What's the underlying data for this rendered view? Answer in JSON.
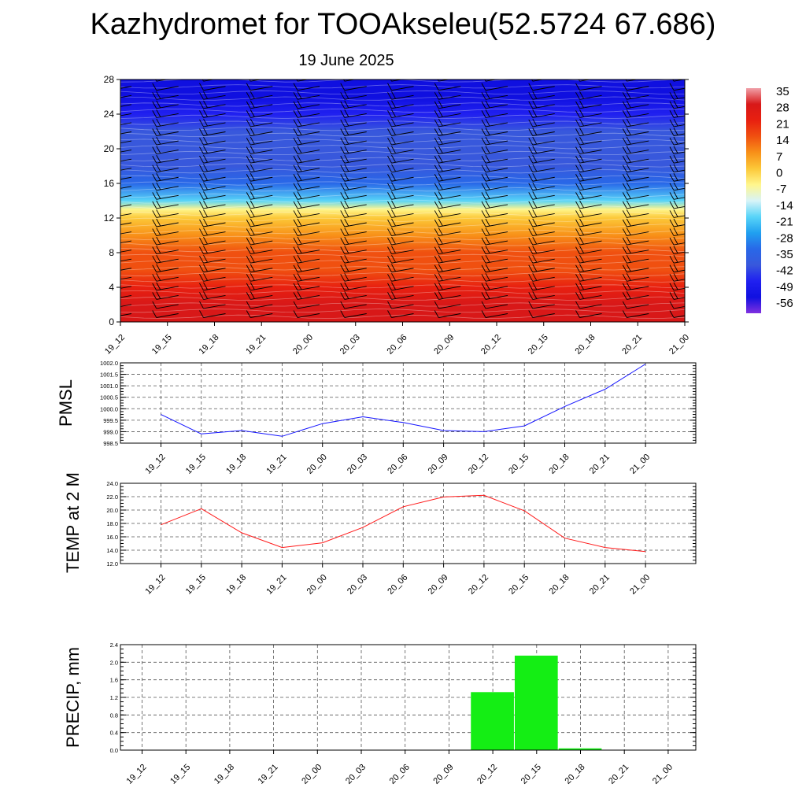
{
  "page": {
    "title": "Kazhydromet for TOOAkseleu(52.5724 67.686)",
    "subtitle": "19 June 2025"
  },
  "colors": {
    "pmsl_line": "#1515ff",
    "temp_line": "#ff1a1a",
    "precip_bar": "#14ee14",
    "axis": "#000000",
    "grid": "#555555"
  },
  "chart_data": [
    {
      "id": "cross-section",
      "type": "heatmap",
      "title": "",
      "xlabel": "",
      "ylabel": "",
      "x": [
        "19_12",
        "19_15",
        "19_18",
        "19_21",
        "20_00",
        "20_03",
        "20_06",
        "20_09",
        "20_12",
        "20_15",
        "20_18",
        "20_21",
        "21_00"
      ],
      "y_ticks": [
        0,
        4,
        8,
        12,
        16,
        20,
        24,
        28
      ],
      "ylim": [
        0,
        28
      ],
      "colorbar": {
        "labels": [
          "35",
          "28",
          "21",
          "14",
          "7",
          "0",
          "-7",
          "-14",
          "-21",
          "-28",
          "-35",
          "-42",
          "-49",
          "-56"
        ],
        "stops": [
          {
            "value": 35,
            "color": "#f0a0a8"
          },
          {
            "value": 28,
            "color": "#d81818"
          },
          {
            "value": 21,
            "color": "#e82010"
          },
          {
            "value": 14,
            "color": "#f05010"
          },
          {
            "value": 7,
            "color": "#f89018"
          },
          {
            "value": 0,
            "color": "#fcc838"
          },
          {
            "value": -7,
            "color": "#fff68c"
          },
          {
            "value": -14,
            "color": "#d8f4f8"
          },
          {
            "value": -21,
            "color": "#58d4f8"
          },
          {
            "value": -28,
            "color": "#20a0f0"
          },
          {
            "value": -35,
            "color": "#2868e8"
          },
          {
            "value": -42,
            "color": "#3858dc"
          },
          {
            "value": -49,
            "color": "#2020f0"
          },
          {
            "value": -56,
            "color": "#1010e0"
          },
          {
            "value": -63,
            "color": "#8030e0"
          }
        ]
      },
      "field": {
        "levels": [
          0,
          2,
          4,
          6,
          8,
          10,
          12,
          13,
          14,
          16,
          18,
          20,
          22,
          24,
          26,
          28
        ],
        "values": [
          28,
          25,
          21,
          16,
          11,
          6,
          0,
          -10,
          -24,
          -34,
          -40,
          -42,
          -45,
          -52,
          -56,
          -58
        ]
      },
      "wind_barbs": "wind barbs at every time step and level"
    },
    {
      "id": "pmsl",
      "type": "line",
      "title": "",
      "xlabel": "",
      "ylabel": "PMSL",
      "categories": [
        "19_12",
        "19_15",
        "19_18",
        "19_21",
        "20_00",
        "20_03",
        "20_06",
        "20_09",
        "20_12",
        "20_15",
        "20_18",
        "20_21",
        "21_00"
      ],
      "values": [
        999.75,
        998.9,
        999.05,
        998.8,
        999.35,
        999.65,
        999.4,
        999.05,
        999.0,
        999.25,
        1000.1,
        1000.85,
        1001.95
      ],
      "y_ticks": [
        "1002.0",
        "1001.5",
        "1001.0",
        "1000.5",
        "1000.0",
        "999.5",
        "999.0",
        "998.5"
      ],
      "ylim": [
        998.5,
        1002.0
      ],
      "grid": true
    },
    {
      "id": "temp",
      "type": "line",
      "title": "",
      "xlabel": "",
      "ylabel": "TEMP at 2 M",
      "categories": [
        "19_12",
        "19_15",
        "19_18",
        "19_21",
        "20_00",
        "20_03",
        "20_06",
        "20_09",
        "20_12",
        "20_15",
        "20_18",
        "20_21",
        "21_00"
      ],
      "values": [
        17.8,
        20.2,
        16.6,
        14.4,
        15.1,
        17.4,
        20.5,
        21.95,
        22.2,
        19.9,
        15.8,
        14.4,
        13.8
      ],
      "y_ticks": [
        "24.0",
        "22.0",
        "20.0",
        "18.0",
        "16.0",
        "14.0",
        "12.0"
      ],
      "ylim": [
        12.0,
        24.0
      ],
      "grid": true
    },
    {
      "id": "precip",
      "type": "bar",
      "title": "",
      "xlabel": "",
      "ylabel": "PRECIP, mm",
      "categories": [
        "19_12",
        "19_15",
        "19_18",
        "19_21",
        "20_00",
        "20_03",
        "20_06",
        "20_09",
        "20_12",
        "20_15",
        "20_18",
        "20_21",
        "21_00"
      ],
      "values": [
        0,
        0,
        0,
        0,
        0,
        0,
        0,
        0,
        1.32,
        2.15,
        0.04,
        0,
        0
      ],
      "y_ticks": [
        "2.4",
        "2.0",
        "1.6",
        "1.2",
        "0.8",
        "0.4",
        "0.0"
      ],
      "ylim": [
        0,
        2.4
      ],
      "grid": true
    }
  ]
}
